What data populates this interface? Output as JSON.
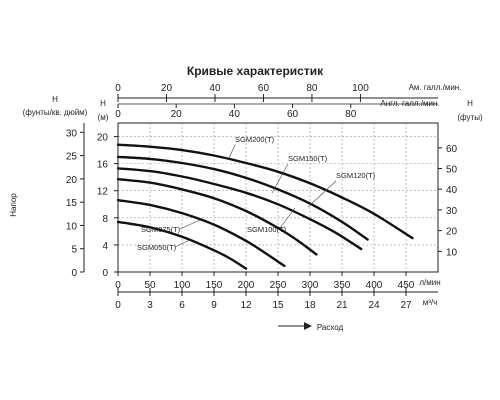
{
  "chart_data": {
    "type": "line",
    "title": "Кривые характеристик",
    "grid": true,
    "x_axes": {
      "us_gal": {
        "label": "Ам. галл./мин.",
        "ticks": [
          0,
          20,
          40,
          60,
          80,
          100
        ],
        "range": [
          0,
          132
        ]
      },
      "imp_gal": {
        "label": "Англ. галл./мин.",
        "ticks": [
          0,
          20,
          40,
          60,
          80
        ],
        "range": [
          0,
          110
        ]
      },
      "lpm": {
        "label": "л/мин",
        "ticks": [
          0,
          50,
          100,
          150,
          200,
          250,
          300,
          350,
          400,
          450
        ],
        "range": [
          0,
          500
        ]
      },
      "m3h": {
        "label": "м³/ч",
        "ticks": [
          0,
          3,
          6,
          9,
          12,
          15,
          18,
          21,
          24,
          27
        ],
        "range": [
          0,
          30
        ]
      },
      "caption": "Расход"
    },
    "y_axes": {
      "psi": {
        "label_line1": "Н",
        "label_line2": "(фунты/кв. дюйм)",
        "ticks": [
          0,
          5,
          10,
          15,
          20,
          25,
          30
        ],
        "range": [
          0,
          32
        ]
      },
      "m": {
        "label_line1": "Н",
        "label_line2": "(м)",
        "ticks": [
          0,
          4,
          8,
          12,
          16,
          20
        ],
        "range": [
          0,
          22
        ]
      },
      "ft": {
        "label_line1": "Н",
        "label_line2": "(футы)",
        "ticks": [
          10,
          20,
          30,
          40,
          50,
          60
        ],
        "range": [
          0,
          72
        ]
      },
      "caption": "Напор"
    },
    "series": [
      {
        "name": "SGM050(T)",
        "x": [
          0,
          50,
          100,
          150,
          175,
          200
        ],
        "y": [
          7.4,
          6.6,
          5.2,
          3.2,
          2.0,
          0.5
        ]
      },
      {
        "name": "SGM075(T)",
        "x": [
          0,
          50,
          100,
          150,
          200,
          230,
          260
        ],
        "y": [
          10.6,
          9.9,
          8.7,
          7.0,
          4.6,
          2.8,
          0.9
        ]
      },
      {
        "name": "SGM100(T)",
        "x": [
          0,
          50,
          100,
          150,
          200,
          250,
          280,
          310
        ],
        "y": [
          13.7,
          13.2,
          12.2,
          10.9,
          9.0,
          6.5,
          4.7,
          2.6
        ]
      },
      {
        "name": "SGM120(T)",
        "x": [
          0,
          50,
          100,
          150,
          200,
          250,
          300,
          340,
          380
        ],
        "y": [
          15.3,
          14.9,
          14.1,
          13.0,
          11.7,
          10.0,
          7.8,
          5.8,
          3.4
        ]
      },
      {
        "name": "SGM150(T)",
        "x": [
          0,
          50,
          100,
          150,
          200,
          250,
          300,
          350,
          390
        ],
        "y": [
          17.0,
          16.7,
          16.1,
          15.2,
          13.9,
          12.2,
          10.1,
          7.4,
          4.8
        ]
      },
      {
        "name": "SGM200(T)",
        "x": [
          0,
          50,
          100,
          150,
          200,
          250,
          300,
          350,
          400,
          460
        ],
        "y": [
          18.8,
          18.5,
          18.0,
          17.2,
          16.1,
          14.8,
          13.1,
          11.0,
          8.6,
          5.0
        ]
      }
    ]
  }
}
